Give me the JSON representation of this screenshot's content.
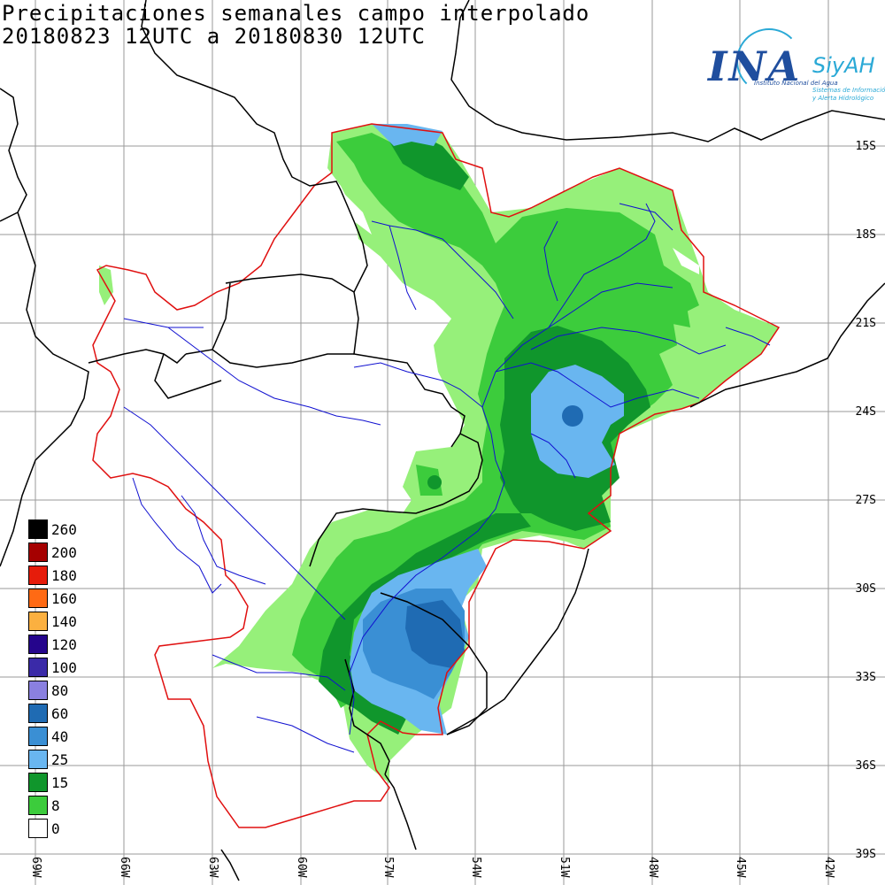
{
  "title": {
    "line1": "Precipitaciones semanales campo interpolado",
    "line2": "20180823 12UTC a 20180830 12UTC"
  },
  "logo": {
    "brand": "INA",
    "product": "SiyAH",
    "subtitle": "Instituto Nacional del Agua",
    "tagline_1": "Sistemas de Información",
    "tagline_2": "y Alerta Hidrológico"
  },
  "legend": {
    "items": [
      {
        "label": "260",
        "color": "#000000"
      },
      {
        "label": "200",
        "color": "#a50000"
      },
      {
        "label": "180",
        "color": "#e61c0b"
      },
      {
        "label": "160",
        "color": "#ff6a14"
      },
      {
        "label": "140",
        "color": "#fbb040"
      },
      {
        "label": "120",
        "color": "#25058c"
      },
      {
        "label": "100",
        "color": "#3a2aa8"
      },
      {
        "label": "80",
        "color": "#8a80e0"
      },
      {
        "label": "60",
        "color": "#1f6bb3"
      },
      {
        "label": "40",
        "color": "#3a8fd4"
      },
      {
        "label": "25",
        "color": "#69b6f0"
      },
      {
        "label": "15",
        "color": "#10962c"
      },
      {
        "label": "8",
        "color": "#3ccc3c"
      },
      {
        "label": "0",
        "color": "#ffffff"
      }
    ]
  },
  "axes": {
    "latitude_labels": [
      "15S",
      "18S",
      "21S",
      "24S",
      "27S",
      "30S",
      "33S",
      "36S",
      "39S"
    ],
    "longitude_labels": [
      "69W",
      "66W",
      "63W",
      "60W",
      "57W",
      "54W",
      "51W",
      "48W",
      "45W",
      "42W"
    ]
  },
  "colors": {
    "basin_border": "#e01010",
    "rivers": "#1010d0",
    "borders": "#000000",
    "grid": "#9a9a9a"
  }
}
